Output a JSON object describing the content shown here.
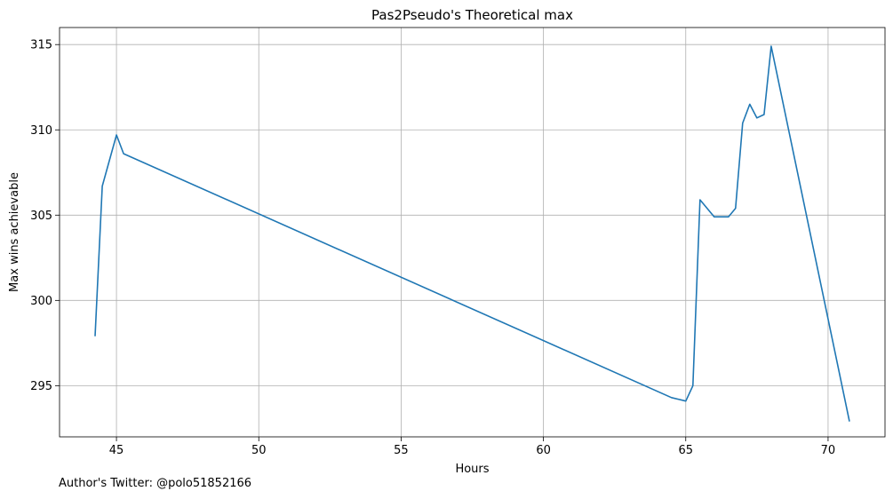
{
  "chart_data": {
    "type": "line",
    "title": "Pas2Pseudo's Theoretical max",
    "xlabel": "Hours",
    "ylabel": "Max wins achievable",
    "xlim": [
      43.0,
      72.0
    ],
    "ylim": [
      292.0,
      316.0
    ],
    "xticks": [
      45,
      50,
      55,
      60,
      65,
      70
    ],
    "yticks": [
      295,
      300,
      305,
      310,
      315
    ],
    "grid": true,
    "color": "#1f77b4",
    "series": [
      {
        "x": [
          44.25,
          44.5,
          45.0,
          45.25,
          64.5,
          65.0,
          65.25,
          65.5,
          66.0,
          66.5,
          66.75,
          67.0,
          67.25,
          67.5,
          67.75,
          68.0,
          70.75
        ],
        "y": [
          297.9,
          306.7,
          309.7,
          308.6,
          294.3,
          294.1,
          295.0,
          305.9,
          304.9,
          304.9,
          305.4,
          310.4,
          311.5,
          310.7,
          310.9,
          314.9,
          292.9
        ]
      }
    ]
  },
  "footnote": "Author's Twitter: @polo51852166"
}
